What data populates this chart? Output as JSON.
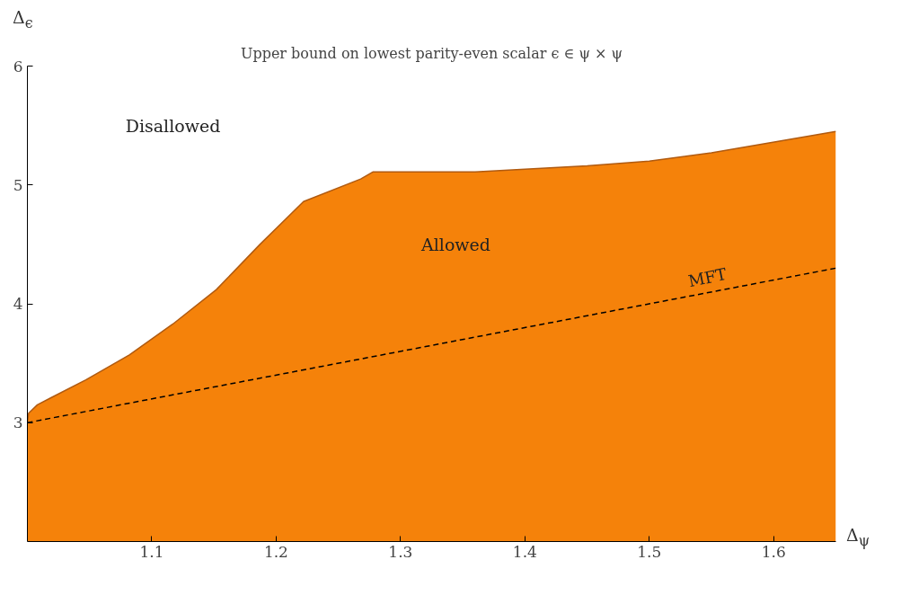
{
  "chart_data": {
    "type": "area",
    "title": "Upper bound on lowest parity-even scalar ϵ ∈ ψ × ψ",
    "xlabel": "Δ$_{ψ}$",
    "ylabel": "Δ$_{ϵ}$",
    "xlim": [
      1.0,
      1.65
    ],
    "ylim": [
      2,
      6
    ],
    "xticks": [
      1.1,
      1.2,
      1.3,
      1.4,
      1.5,
      1.6
    ],
    "yticks": [
      3,
      4,
      5,
      6
    ],
    "grid": false,
    "series": [
      {
        "color": "#f5820a",
        "x": [
          1.0,
          1.001,
          1.008,
          1.019,
          1.047,
          1.082,
          1.117,
          1.152,
          1.187,
          1.222,
          1.268,
          1.278,
          1.36,
          1.45,
          1.5,
          1.55,
          1.65
        ],
        "values": [
          3.0,
          3.08,
          3.15,
          3.21,
          3.36,
          3.57,
          3.83,
          4.12,
          4.5,
          4.86,
          5.05,
          5.11,
          5.11,
          5.16,
          5.2,
          5.27,
          5.45
        ]
      },
      {
        "type": "line",
        "name": "MFT",
        "color": "#000000",
        "line_style": "dashed",
        "x": [
          1.0,
          1.65
        ],
        "values": [
          3.0,
          4.3
        ]
      }
    ],
    "annotations": [
      "Disallowed",
      "Allowed"
    ]
  }
}
